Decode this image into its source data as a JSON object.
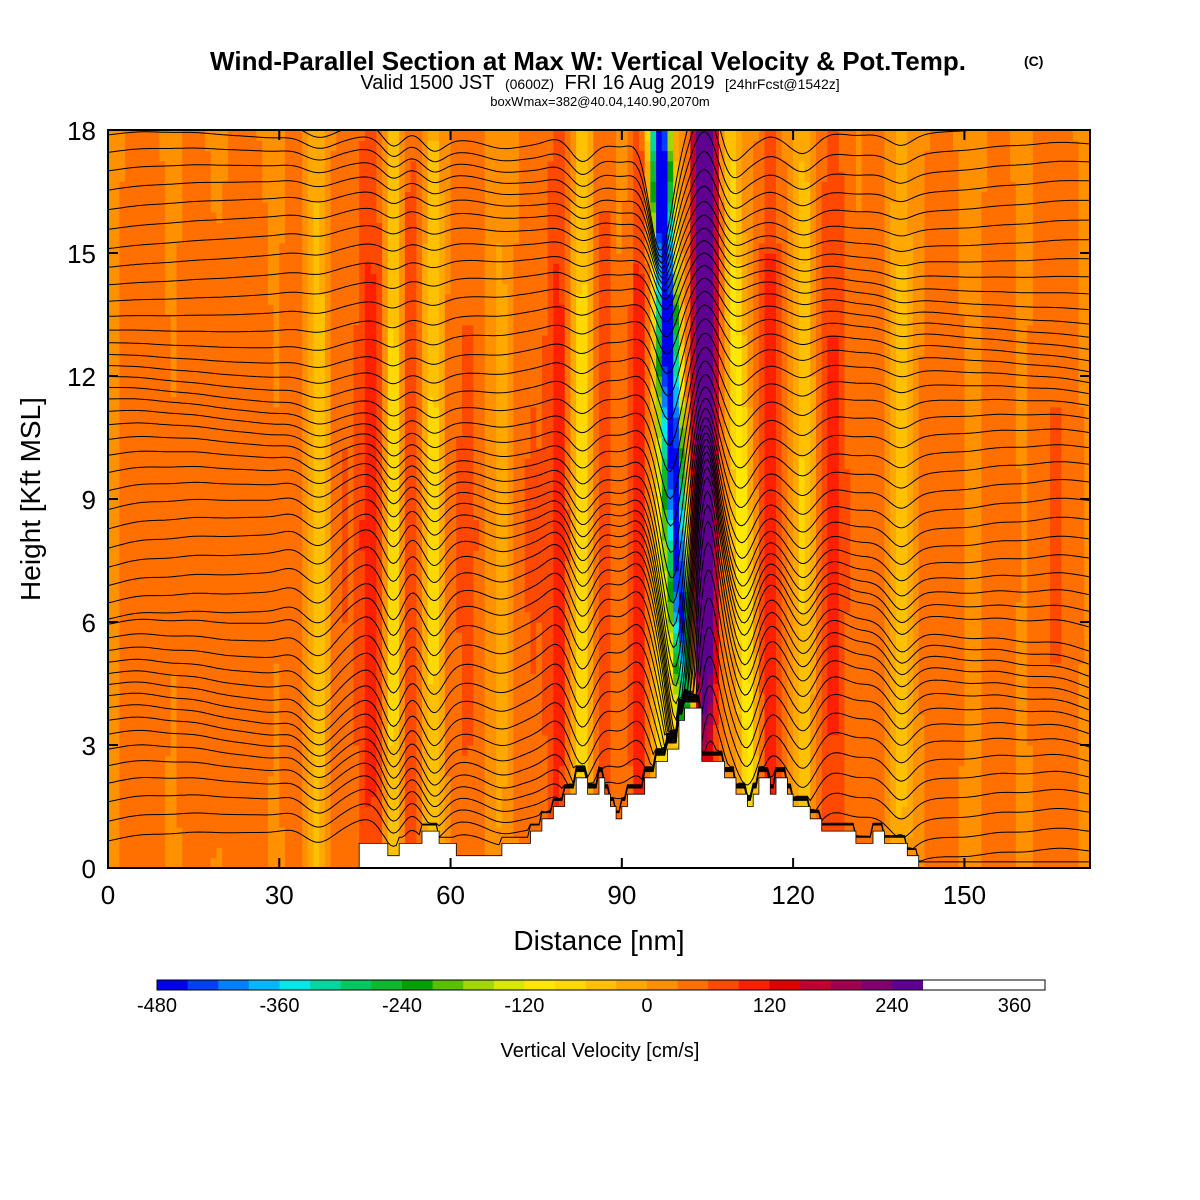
{
  "chart_data": {
    "type": "heatmap",
    "title": "Wind-Parallel Section at Max W: Vertical Velocity & Pot.Temp.",
    "title_mark": "(C)",
    "subtitle": {
      "valid_prefix": "Valid 1500 JST",
      "utc": "(0600Z)",
      "date": "FRI 16 Aug 2019",
      "forecast": "[24hrFcst@1542z]"
    },
    "box_info": "boxWmax=382@40.04,140.90,2070m",
    "xlabel": "Distance [nm]",
    "ylabel": "Height [Kft MSL]",
    "xlim": [
      0,
      172
    ],
    "ylim": [
      0,
      18
    ],
    "x_ticks": [
      "0",
      "30",
      "60",
      "90",
      "120",
      "150"
    ],
    "x_tick_values": [
      0,
      30,
      60,
      90,
      120,
      150
    ],
    "y_ticks": [
      "0",
      "3",
      "6",
      "9",
      "12",
      "15",
      "18"
    ],
    "y_tick_values": [
      0,
      3,
      6,
      9,
      12,
      15,
      18
    ],
    "colorbar": {
      "title": "Vertical Velocity [cm/s]",
      "levels": [
        -480,
        -450,
        -420,
        -390,
        -360,
        -330,
        -300,
        -270,
        -240,
        -210,
        -180,
        -150,
        -120,
        -90,
        -60,
        -30,
        0,
        30,
        60,
        90,
        120,
        150,
        180,
        210,
        240,
        270,
        300,
        330,
        360,
        390
      ],
      "colors": [
        "#0000f0",
        "#0040f8",
        "#0080ff",
        "#00b8ff",
        "#00e8e8",
        "#00d8a0",
        "#00c860",
        "#10b830",
        "#00a000",
        "#58c000",
        "#a0d800",
        "#d8e800",
        "#ffe800",
        "#ffd800",
        "#ffc000",
        "#ffa800",
        "#ff9000",
        "#ff7000",
        "#ff4800",
        "#ff2000",
        "#e00000",
        "#c00030",
        "#a00050",
        "#800070",
        "#600090"
      ],
      "tick_labels": [
        "-480",
        "-360",
        "-240",
        "-120",
        "0",
        "120",
        "240",
        "360"
      ],
      "tick_values": [
        -480,
        -360,
        -240,
        -120,
        0,
        120,
        240,
        360
      ]
    },
    "terrain_profile": [
      [
        0,
        0
      ],
      [
        44,
        0
      ],
      [
        44,
        0.6
      ],
      [
        49,
        0.6
      ],
      [
        49,
        0.3
      ],
      [
        51,
        0.3
      ],
      [
        51,
        0.6
      ],
      [
        55,
        0.6
      ],
      [
        55,
        0.9
      ],
      [
        58,
        0.9
      ],
      [
        58,
        0.6
      ],
      [
        61,
        0.6
      ],
      [
        61,
        0.3
      ],
      [
        69,
        0.3
      ],
      [
        69,
        0.6
      ],
      [
        74,
        0.6
      ],
      [
        74,
        0.9
      ],
      [
        76,
        0.9
      ],
      [
        76,
        1.2
      ],
      [
        78,
        1.2
      ],
      [
        78,
        1.5
      ],
      [
        80,
        1.5
      ],
      [
        80,
        1.8
      ],
      [
        82,
        1.8
      ],
      [
        82,
        2.2
      ],
      [
        84,
        2.2
      ],
      [
        84,
        1.8
      ],
      [
        86,
        1.8
      ],
      [
        86,
        2.2
      ],
      [
        87,
        2.2
      ],
      [
        87,
        1.8
      ],
      [
        88,
        1.8
      ],
      [
        88,
        1.5
      ],
      [
        89,
        1.5
      ],
      [
        89,
        1.2
      ],
      [
        90,
        1.2
      ],
      [
        90,
        1.5
      ],
      [
        91,
        1.5
      ],
      [
        91,
        1.8
      ],
      [
        94,
        1.8
      ],
      [
        94,
        2.2
      ],
      [
        96,
        2.2
      ],
      [
        96,
        2.6
      ],
      [
        98,
        2.6
      ],
      [
        98,
        2.9
      ],
      [
        100,
        2.9
      ],
      [
        100,
        3.6
      ],
      [
        101,
        3.6
      ],
      [
        101,
        3.9
      ],
      [
        104,
        3.9
      ],
      [
        104,
        2.6
      ],
      [
        108,
        2.6
      ],
      [
        108,
        2.2
      ],
      [
        110,
        2.2
      ],
      [
        110,
        1.8
      ],
      [
        112,
        1.8
      ],
      [
        112,
        1.5
      ],
      [
        113,
        1.5
      ],
      [
        113,
        1.8
      ],
      [
        114,
        1.8
      ],
      [
        114,
        2.2
      ],
      [
        116,
        2.2
      ],
      [
        116,
        1.8
      ],
      [
        117,
        1.8
      ],
      [
        117,
        2.2
      ],
      [
        119,
        2.2
      ],
      [
        119,
        1.8
      ],
      [
        120,
        1.8
      ],
      [
        120,
        1.5
      ],
      [
        123,
        1.5
      ],
      [
        123,
        1.2
      ],
      [
        125,
        1.2
      ],
      [
        125,
        0.9
      ],
      [
        131,
        0.9
      ],
      [
        131,
        0.6
      ],
      [
        134,
        0.6
      ],
      [
        134,
        0.9
      ],
      [
        136,
        0.9
      ],
      [
        136,
        0.6
      ],
      [
        140,
        0.6
      ],
      [
        140,
        0.3
      ],
      [
        142,
        0.3
      ],
      [
        142,
        0
      ],
      [
        172,
        0
      ]
    ],
    "velocity_features": [
      {
        "x": 6,
        "w": 4,
        "v": 40
      },
      {
        "x": 15,
        "w": 3,
        "v": 25
      },
      {
        "x": 24,
        "w": 6,
        "v": 25
      },
      {
        "x": 33,
        "w": 2,
        "v": 40
      },
      {
        "x": 37,
        "w": 2.5,
        "v": -90
      },
      {
        "x": 40,
        "w": 3,
        "v": 55
      },
      {
        "x": 46,
        "w": 2.5,
        "v": 95
      },
      {
        "x": 50,
        "w": 1.5,
        "v": -120
      },
      {
        "x": 53,
        "w": 2,
        "v": 75
      },
      {
        "x": 57,
        "w": 1.6,
        "v": -100
      },
      {
        "x": 63,
        "w": 4,
        "v": 50
      },
      {
        "x": 69,
        "w": 2.5,
        "v": -40
      },
      {
        "x": 74,
        "w": 4,
        "v": 45
      },
      {
        "x": 79,
        "w": 2,
        "v": 85
      },
      {
        "x": 83,
        "w": 1.6,
        "v": -110
      },
      {
        "x": 87,
        "w": 2,
        "v": 65
      },
      {
        "x": 93,
        "w": 1.8,
        "v": 100
      },
      {
        "x": 97,
        "w": 1.6,
        "v": -120
      },
      {
        "x": 101,
        "w": 1.7,
        "v": -500,
        "tilt": -0.35,
        "top": 18,
        "strong": true
      },
      {
        "x": 104.5,
        "w": 2.0,
        "v": 390,
        "tilt": 0.0,
        "top": 18,
        "strong": true
      },
      {
        "x": 112,
        "w": 1.6,
        "v": -140,
        "tilt": -0.25
      },
      {
        "x": 116,
        "w": 2,
        "v": 100
      },
      {
        "x": 122,
        "w": 1.7,
        "v": -90
      },
      {
        "x": 127,
        "w": 3,
        "v": 85
      },
      {
        "x": 134,
        "w": 2,
        "v": 40
      },
      {
        "x": 139,
        "w": 1.6,
        "v": -70
      },
      {
        "x": 146,
        "w": 4,
        "v": 30
      },
      {
        "x": 156,
        "w": 3,
        "v": 35
      },
      {
        "x": 166,
        "w": 4,
        "v": 45
      }
    ],
    "theta_contours": {
      "count": 48,
      "label_interval": 2
    }
  }
}
